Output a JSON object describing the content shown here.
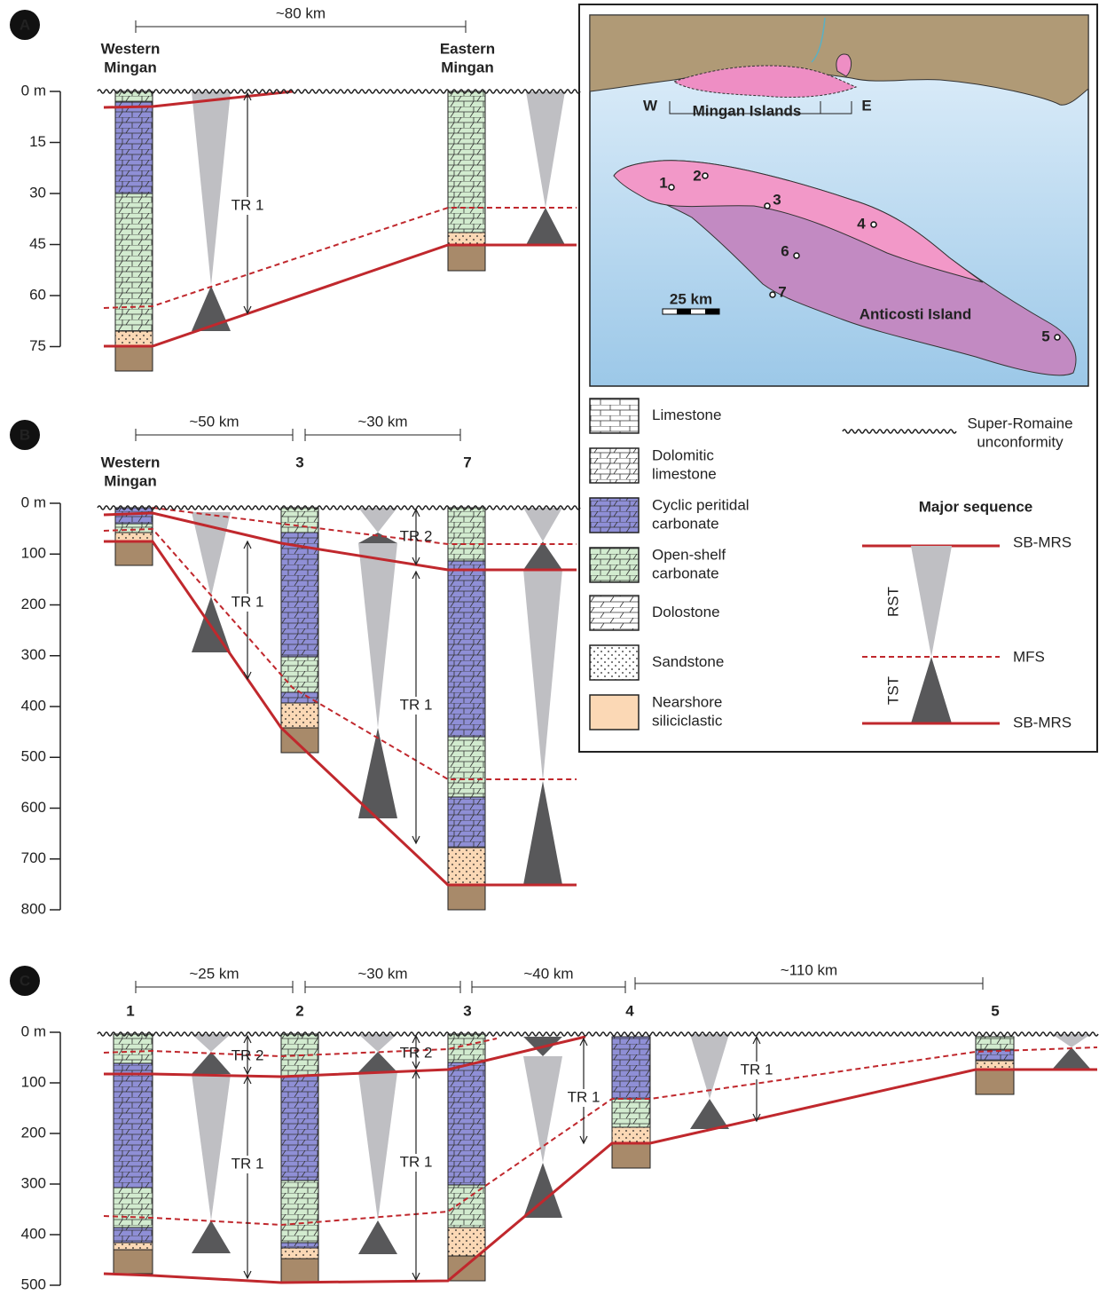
{
  "panels": [
    {
      "letter": "A",
      "depth_ticks": [
        "0 m",
        "15",
        "30",
        "45",
        "60",
        "75"
      ],
      "distances": [
        "~80 km"
      ],
      "columns": [
        {
          "label": [
            "Western",
            "Mingan"
          ]
        },
        {
          "label": [
            "Eastern",
            "Mingan"
          ]
        }
      ],
      "tr_labels": [
        "TR 1"
      ]
    },
    {
      "letter": "B",
      "depth_ticks": [
        "0 m",
        "100",
        "200",
        "300",
        "400",
        "500",
        "600",
        "700",
        "800"
      ],
      "distances": [
        "~50 km",
        "~30 km"
      ],
      "columns": [
        {
          "label": [
            "Western",
            "Mingan"
          ]
        },
        {
          "label": [
            "3"
          ]
        },
        {
          "label": [
            "7"
          ]
        }
      ],
      "tr_labels": [
        "TR 2",
        "TR 1",
        "TR 1"
      ]
    },
    {
      "letter": "C",
      "depth_ticks": [
        "0 m",
        "100",
        "200",
        "300",
        "400",
        "500"
      ],
      "distances": [
        "~25 km",
        "~30 km",
        "~40 km",
        "~110 km"
      ],
      "columns": [
        {
          "label": [
            "1"
          ]
        },
        {
          "label": [
            "2"
          ]
        },
        {
          "label": [
            "3"
          ]
        },
        {
          "label": [
            "4"
          ]
        },
        {
          "label": [
            "5"
          ]
        }
      ],
      "tr_labels": [
        "TR 2",
        "TR 1",
        "TR 2",
        "TR 1",
        "TR 1",
        "TR 1"
      ]
    }
  ],
  "map": {
    "west": "W",
    "islands": "Mingan Islands",
    "east": "E",
    "island": "Anticosti Island",
    "scale": "25 km",
    "sites": [
      "1",
      "2",
      "3",
      "4",
      "5",
      "6",
      "7"
    ]
  },
  "legend": {
    "lithologies": [
      {
        "label": [
          "Limestone"
        ]
      },
      {
        "label": [
          "Dolomitic",
          "limestone"
        ]
      },
      {
        "label": [
          "Cyclic peritidal",
          "carbonate"
        ]
      },
      {
        "label": [
          "Open-shelf",
          "carbonate"
        ]
      },
      {
        "label": [
          "Dolostone"
        ]
      },
      {
        "label": [
          "Sandstone"
        ]
      },
      {
        "label": [
          "Nearshore",
          "siliciclastic"
        ]
      }
    ],
    "unconformity": [
      "Super-Romaine",
      "unconformity"
    ],
    "sequence": {
      "title": "Major sequence",
      "top": "SB-MRS",
      "rst": "RST",
      "mfs": "MFS",
      "tst": "TST",
      "bottom": "SB-MRS"
    }
  }
}
